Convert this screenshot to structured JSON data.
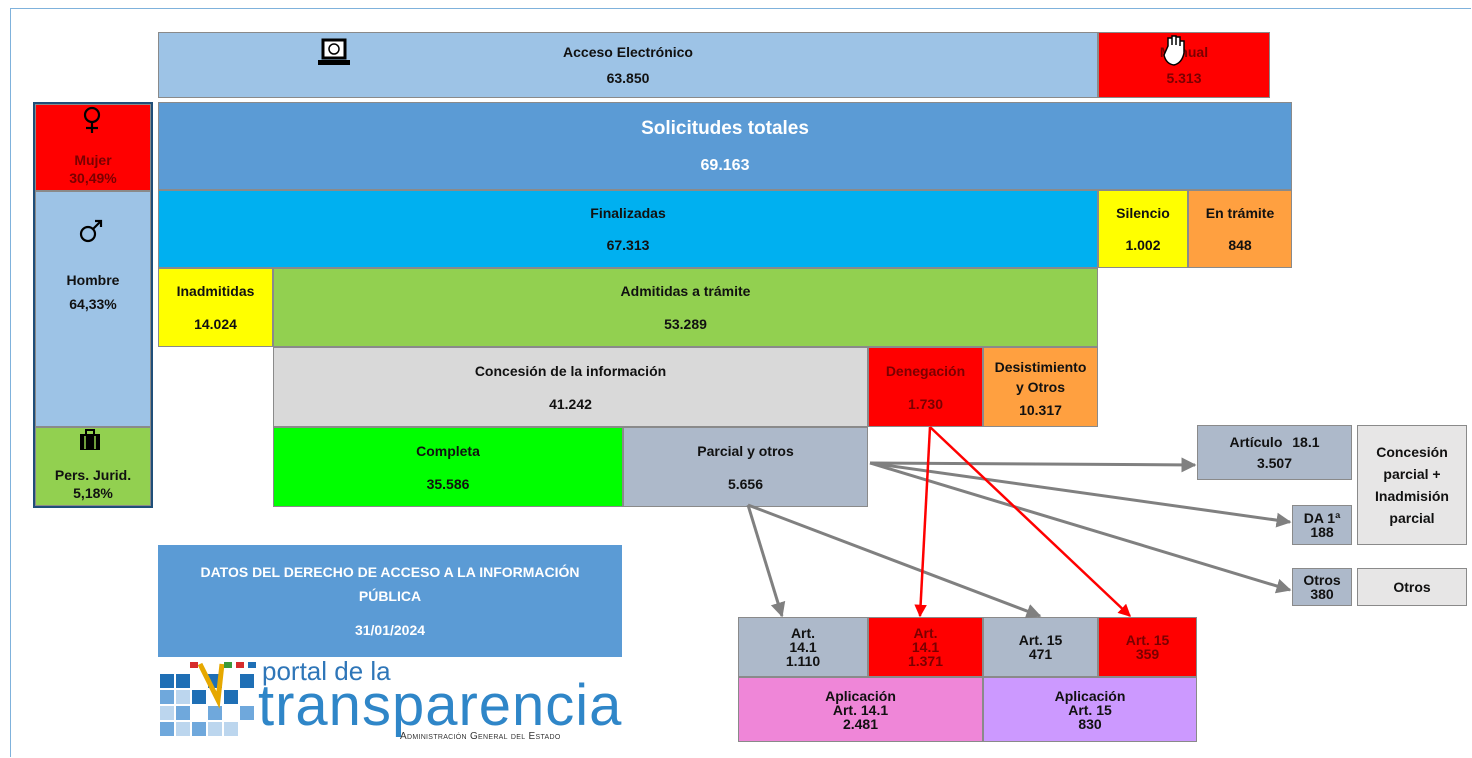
{
  "boxes": {
    "acceso_electronico": {
      "label": "Acceso Electrónico",
      "value": "63.850"
    },
    "manual": {
      "label": "Manual",
      "value": "5.313"
    },
    "solicitudes_totales": {
      "label": "Solicitudes totales",
      "value": "69.163"
    },
    "mujer": {
      "label": "Mujer",
      "value": "30,49%"
    },
    "hombre": {
      "label": "Hombre",
      "value": "64,33%"
    },
    "pers_juridica": {
      "label": "Pers. Jurid.",
      "value": "5,18%"
    },
    "finalizadas": {
      "label": "Finalizadas",
      "value": "67.313"
    },
    "silencio": {
      "label": "Silencio",
      "value": "1.002"
    },
    "en_tramite": {
      "label": "En trámite",
      "value": "848"
    },
    "inadmitidas": {
      "label": "Inadmitidas",
      "value": "14.024"
    },
    "admitidas": {
      "label": "Admitidas a trámite",
      "value": "53.289"
    },
    "concesion": {
      "label": "Concesión de la información",
      "value": "41.242"
    },
    "denegacion": {
      "label": "Denegación",
      "value": "1.730"
    },
    "desistimiento": {
      "label": "Desistimiento y Otros",
      "value": "10.317"
    },
    "completa": {
      "label": "Completa",
      "value": "35.586"
    },
    "parcial": {
      "label": "Parcial y otros",
      "value": "5.656"
    },
    "articulo_18_1": {
      "label": "Artículo 18.1",
      "value": "3.507"
    },
    "concesion_parcial": {
      "label": "Concesión parcial + Inadmisión parcial"
    },
    "da_1": {
      "label": "DA 1ª",
      "value": "188"
    },
    "otros": {
      "label": "Otros",
      "value": "380"
    },
    "otros_desc": {
      "label": "Otros"
    },
    "art_14_1_parcial": {
      "label": "Art. 14.1",
      "value": "1.110"
    },
    "art_14_1_denegacion": {
      "label": "Art. 14.1",
      "value": "1.371"
    },
    "art_15_parcial": {
      "label": "Art. 15",
      "value": "471"
    },
    "art_15_denegacion": {
      "label": "Art. 15",
      "value": "359"
    },
    "aplicacion_14_1": {
      "label": "Aplicación Art. 14.1",
      "value": "2.481"
    },
    "aplicacion_15": {
      "label": "Aplicación Art. 15",
      "value": "830"
    }
  },
  "info": {
    "title": "DATOS DEL DERECHO DE ACCESO A LA INFORMACIÓN PÚBLICA",
    "date": "31/01/2024"
  },
  "logo": {
    "line1": "portal de la",
    "line2": "transparencia",
    "line3": "Administración General del Estado"
  }
}
